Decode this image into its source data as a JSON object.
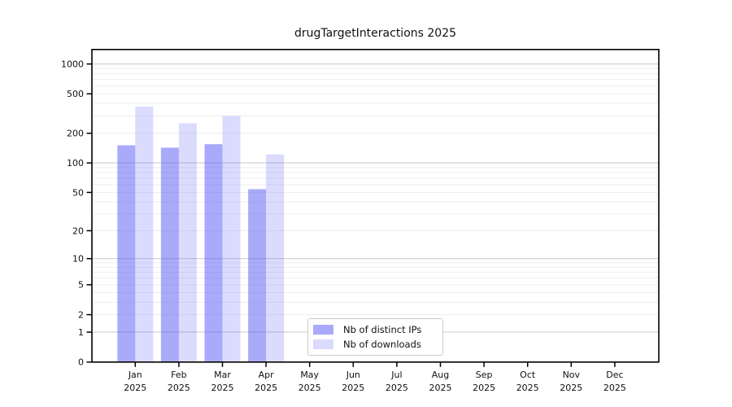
{
  "title": "drugTargetInteractions 2025",
  "chart_data": {
    "type": "bar",
    "title": "drugTargetInteractions 2025",
    "categories": [
      "Jan",
      "Feb",
      "Mar",
      "Apr",
      "May",
      "Jun",
      "Jul",
      "Aug",
      "Sep",
      "Oct",
      "Nov",
      "Dec"
    ],
    "category_year": "2025",
    "series": [
      {
        "name": "Nb of distinct IPs",
        "values": [
          151,
          143,
          155,
          54,
          0,
          0,
          0,
          0,
          0,
          0,
          0,
          0
        ],
        "color": "rgba(85,85,245,0.5)"
      },
      {
        "name": "Nb of downloads",
        "values": [
          372,
          252,
          298,
          122,
          0,
          0,
          0,
          0,
          0,
          0,
          0,
          0
        ],
        "color": "rgba(85,85,245,0.21)"
      }
    ],
    "xlabel": "",
    "ylabel": "",
    "yscale": "log1p",
    "yticks": [
      0,
      1,
      2,
      5,
      10,
      20,
      50,
      100,
      200,
      500,
      1000
    ],
    "ylim": [
      0,
      1400
    ],
    "grid": "horizontal major+minor",
    "legend_position": "inside lower-center"
  },
  "legend": {
    "items": [
      {
        "label": "Nb of distinct IPs"
      },
      {
        "label": "Nb of downloads"
      }
    ]
  },
  "colors": {
    "background": "#ffffff",
    "frame": "#000000",
    "grid_major": "#c8c8c8",
    "grid_minor": "#ededed",
    "tick_text": "#111111",
    "bar_distinct_ips_on_white": "#aaaaf9",
    "bar_downloads_on_white": "#dbdbfa"
  }
}
